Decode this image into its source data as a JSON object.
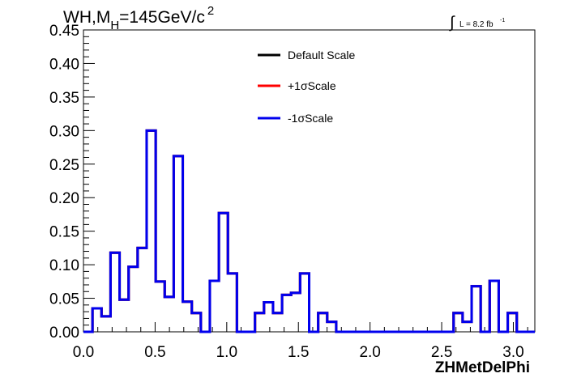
{
  "chart_data": {
    "type": "line",
    "title": {
      "main": "WH,M",
      "sub": "H",
      "rest": "=145GeV/c",
      "sup": "2"
    },
    "lumi": {
      "integral": "∫",
      "text": "L = 8.2 fb",
      "sup": "-1"
    },
    "xlabel": "ZHMetDelPhi",
    "ylabel": "",
    "xlim": [
      0.0,
      3.15
    ],
    "ylim": [
      0.0,
      0.45
    ],
    "xticks": [
      "0.0",
      "0.5",
      "1.0",
      "1.5",
      "2.0",
      "2.5",
      "3.0"
    ],
    "yticks": [
      "0.00",
      "0.05",
      "0.10",
      "0.15",
      "0.20",
      "0.25",
      "0.30",
      "0.35",
      "0.40",
      "0.45"
    ],
    "grid": false,
    "legend_position": "top-right",
    "bin_edges": [
      0.0,
      0.063,
      0.126,
      0.189,
      0.252,
      0.315,
      0.378,
      0.441,
      0.504,
      0.567,
      0.63,
      0.693,
      0.756,
      0.819,
      0.882,
      0.945,
      1.008,
      1.071,
      1.134,
      1.197,
      1.26,
      1.323,
      1.386,
      1.449,
      1.512,
      1.575,
      1.638,
      1.701,
      1.764,
      1.827,
      1.89,
      1.953,
      2.016,
      2.079,
      2.142,
      2.205,
      2.268,
      2.331,
      2.394,
      2.457,
      2.52,
      2.583,
      2.646,
      2.709,
      2.772,
      2.835,
      2.898,
      2.961,
      3.024,
      3.087,
      3.15
    ],
    "series": [
      {
        "name": "Default Scale",
        "color": "#000000",
        "values": [
          0.0,
          0.035,
          0.023,
          0.118,
          0.048,
          0.097,
          0.125,
          0.3,
          0.075,
          0.052,
          0.262,
          0.045,
          0.028,
          0.0,
          0.076,
          0.177,
          0.087,
          0.0,
          0.0,
          0.028,
          0.044,
          0.028,
          0.055,
          0.058,
          0.087,
          0.0,
          0.028,
          0.015,
          0.0,
          0.0,
          0.0,
          0.0,
          0.0,
          0.0,
          0.0,
          0.0,
          0.0,
          0.0,
          0.0,
          0.0,
          0.0,
          0.028,
          0.015,
          0.068,
          0.0,
          0.076,
          0.0,
          0.028,
          0.0,
          0.0
        ]
      },
      {
        "name": "+1σScale",
        "color": "#ff0000",
        "values": [
          0.0,
          0.035,
          0.023,
          0.118,
          0.048,
          0.097,
          0.125,
          0.3,
          0.075,
          0.052,
          0.262,
          0.045,
          0.028,
          0.0,
          0.076,
          0.177,
          0.087,
          0.0,
          0.0,
          0.028,
          0.044,
          0.028,
          0.055,
          0.058,
          0.087,
          0.0,
          0.028,
          0.015,
          0.0,
          0.0,
          0.0,
          0.0,
          0.0,
          0.0,
          0.0,
          0.0,
          0.0,
          0.0,
          0.0,
          0.0,
          0.0,
          0.028,
          0.015,
          0.068,
          0.0,
          0.076,
          0.0,
          0.028,
          0.0,
          0.0
        ]
      },
      {
        "name": "-1σScale",
        "color": "#0000ee",
        "values": [
          0.0,
          0.035,
          0.023,
          0.118,
          0.048,
          0.097,
          0.125,
          0.3,
          0.075,
          0.052,
          0.262,
          0.045,
          0.028,
          0.0,
          0.076,
          0.177,
          0.087,
          0.0,
          0.0,
          0.028,
          0.044,
          0.028,
          0.055,
          0.058,
          0.087,
          0.0,
          0.028,
          0.015,
          0.0,
          0.0,
          0.0,
          0.0,
          0.0,
          0.0,
          0.0,
          0.0,
          0.0,
          0.0,
          0.0,
          0.0,
          0.0,
          0.028,
          0.015,
          0.068,
          0.0,
          0.076,
          0.0,
          0.028,
          0.0,
          0.0
        ]
      }
    ]
  }
}
